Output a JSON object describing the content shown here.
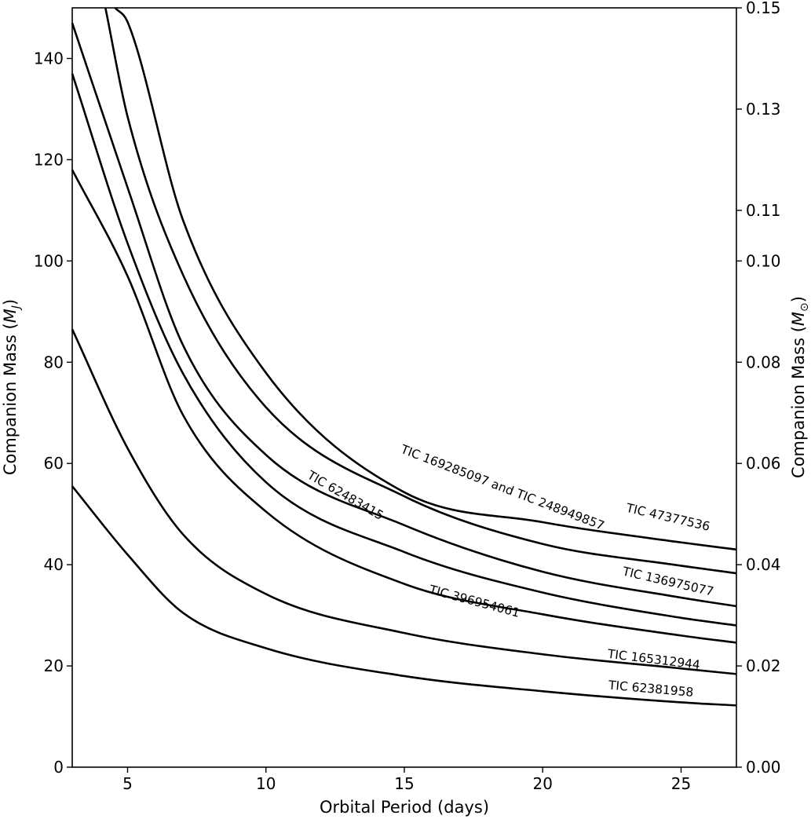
{
  "chart_data": {
    "type": "line",
    "xlabel": "Orbital Period (days)",
    "ylabel_left": "Companion Mass (M_J)",
    "ylabel_right": "Companion Mass (M_⊙)",
    "xlim": [
      3,
      27
    ],
    "ylim_left": [
      0,
      150
    ],
    "ylim_right": [
      0,
      0.15
    ],
    "xticks": [
      5,
      10,
      15,
      20,
      25
    ],
    "yticks_left": [
      0,
      20,
      40,
      60,
      80,
      100,
      120,
      140
    ],
    "yticks_right": [
      0.0,
      0.02,
      0.04,
      0.06,
      0.08,
      0.1,
      0.11,
      0.13,
      0.15
    ],
    "ytick_labels_right": [
      "0.00",
      "0.02",
      "0.04",
      "0.06",
      "0.08",
      "0.10",
      "0.11",
      "0.13",
      "0.15"
    ],
    "series": [
      {
        "name": "TIC 47377536",
        "label": "TIC 47377536",
        "x": [
          4.55,
          5,
          7,
          10,
          15,
          20,
          25,
          27
        ],
        "y": [
          150,
          147.2,
          108.1,
          77.9,
          54.3,
          48.4,
          44.4,
          43
        ]
      },
      {
        "name": "TIC 169285097 and TIC 248949857",
        "label": "TIC 169285097 and TIC 248949857",
        "x": [
          4.2,
          5,
          7,
          10,
          15,
          20,
          25,
          27
        ],
        "y": [
          150,
          128.5,
          97.3,
          71.1,
          53.5,
          44.1,
          39.8,
          38.3
        ]
      },
      {
        "name": "TIC 136975077",
        "label": "TIC 136975077",
        "x": [
          3,
          5,
          7,
          10,
          15,
          20,
          25,
          27
        ],
        "y": [
          147,
          114.5,
          83.4,
          61.7,
          47.8,
          38.6,
          33.5,
          31.8
        ]
      },
      {
        "name": "TIC 62483415",
        "label": "TIC 62483415",
        "x": [
          3,
          5,
          7,
          10,
          15,
          20,
          25,
          27
        ],
        "y": [
          137,
          103.5,
          77.8,
          56.3,
          42.5,
          34.5,
          29.5,
          28
        ]
      },
      {
        "name": "TIC 396954061",
        "label": "TIC 396954061",
        "x": [
          3,
          5,
          7,
          10,
          15,
          20,
          25,
          27
        ],
        "y": [
          118,
          97,
          69.6,
          50.5,
          36.2,
          30.2,
          26,
          24.6
        ]
      },
      {
        "name": "TIC 165312944",
        "label": "TIC 165312944",
        "x": [
          3,
          5,
          7,
          10,
          15,
          20,
          25,
          27
        ],
        "y": [
          86.5,
          63,
          46,
          34.2,
          26.5,
          22.3,
          19.5,
          18.4
        ]
      },
      {
        "name": "TIC 62381958",
        "label": "TIC 62381958",
        "x": [
          3,
          5,
          7,
          10,
          15,
          20,
          25,
          27
        ],
        "y": [
          55.5,
          42,
          30.5,
          23.5,
          18,
          15,
          12.8,
          12.2
        ]
      }
    ]
  }
}
